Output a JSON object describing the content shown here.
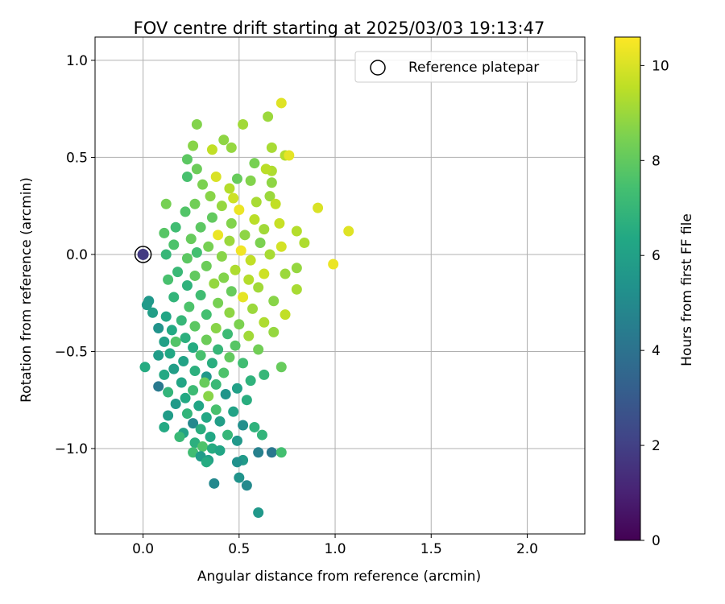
{
  "chart_data": {
    "type": "scatter",
    "title": "FOV centre drift starting at 2025/03/03 19:13:47",
    "xlabel": "Angular distance from reference (arcmin)",
    "ylabel": "Rotation from reference (arcmin)",
    "xlim": [
      -0.25,
      2.3
    ],
    "ylim": [
      -1.44,
      1.12
    ],
    "xticks": [
      0.0,
      0.5,
      1.0,
      1.5,
      2.0
    ],
    "xtick_labels": [
      "0.0",
      "0.5",
      "1.0",
      "1.5",
      "2.0"
    ],
    "yticks": [
      -1.0,
      -0.5,
      0.0,
      0.5,
      1.0
    ],
    "ytick_labels": [
      "−1.0",
      "−0.5",
      "0.0",
      "0.5",
      "1.0"
    ],
    "grid": true,
    "legend": {
      "position": "top-right",
      "entries": [
        "Reference platepar"
      ]
    },
    "colorbar": {
      "label": "Hours from first FF file",
      "range": [
        0,
        10.6
      ],
      "ticks": [
        0,
        2,
        4,
        6,
        8,
        10
      ],
      "tick_labels": [
        "0",
        "2",
        "4",
        "6",
        "8",
        "10"
      ],
      "colormap": "viridis"
    },
    "reference_point": {
      "x": 0.0,
      "y": 0.0,
      "hours": 1.8
    },
    "series": [
      {
        "points": [
          {
            "x": 0.72,
            "y": 0.78,
            "h": 10.1
          },
          {
            "x": 0.28,
            "y": 0.67,
            "h": 8.6
          },
          {
            "x": 0.52,
            "y": 0.67,
            "h": 9.1
          },
          {
            "x": 0.65,
            "y": 0.71,
            "h": 9.0
          },
          {
            "x": 0.26,
            "y": 0.56,
            "h": 8.7
          },
          {
            "x": 0.42,
            "y": 0.59,
            "h": 8.8
          },
          {
            "x": 0.67,
            "y": 0.55,
            "h": 9.2
          },
          {
            "x": 0.74,
            "y": 0.51,
            "h": 9.4
          },
          {
            "x": 0.76,
            "y": 0.51,
            "h": 10.2
          },
          {
            "x": 0.46,
            "y": 0.55,
            "h": 8.9
          },
          {
            "x": 0.36,
            "y": 0.54,
            "h": 9.6
          },
          {
            "x": 0.58,
            "y": 0.47,
            "h": 8.4
          },
          {
            "x": 0.67,
            "y": 0.43,
            "h": 9.3
          },
          {
            "x": 0.64,
            "y": 0.44,
            "h": 9.5
          },
          {
            "x": 0.23,
            "y": 0.49,
            "h": 7.9
          },
          {
            "x": 0.28,
            "y": 0.44,
            "h": 8.2
          },
          {
            "x": 0.38,
            "y": 0.4,
            "h": 10.0
          },
          {
            "x": 0.56,
            "y": 0.38,
            "h": 8.6
          },
          {
            "x": 0.23,
            "y": 0.4,
            "h": 7.5
          },
          {
            "x": 0.67,
            "y": 0.37,
            "h": 8.8
          },
          {
            "x": 0.31,
            "y": 0.36,
            "h": 8.5
          },
          {
            "x": 0.45,
            "y": 0.34,
            "h": 9.4
          },
          {
            "x": 0.49,
            "y": 0.39,
            "h": 8.1
          },
          {
            "x": 0.66,
            "y": 0.3,
            "h": 9.0
          },
          {
            "x": 0.35,
            "y": 0.3,
            "h": 8.7
          },
          {
            "x": 0.47,
            "y": 0.29,
            "h": 9.8
          },
          {
            "x": 0.59,
            "y": 0.27,
            "h": 9.2
          },
          {
            "x": 0.27,
            "y": 0.26,
            "h": 8.3
          },
          {
            "x": 0.12,
            "y": 0.26,
            "h": 8.4
          },
          {
            "x": 0.69,
            "y": 0.26,
            "h": 9.6
          },
          {
            "x": 0.41,
            "y": 0.25,
            "h": 8.9
          },
          {
            "x": 0.5,
            "y": 0.23,
            "h": 10.3
          },
          {
            "x": 0.91,
            "y": 0.24,
            "h": 10.0
          },
          {
            "x": 0.22,
            "y": 0.22,
            "h": 7.7
          },
          {
            "x": 0.36,
            "y": 0.19,
            "h": 8.0
          },
          {
            "x": 0.58,
            "y": 0.18,
            "h": 9.5
          },
          {
            "x": 0.71,
            "y": 0.16,
            "h": 9.7
          },
          {
            "x": 0.46,
            "y": 0.16,
            "h": 8.6
          },
          {
            "x": 0.3,
            "y": 0.14,
            "h": 7.9
          },
          {
            "x": 0.17,
            "y": 0.14,
            "h": 7.3
          },
          {
            "x": 0.63,
            "y": 0.13,
            "h": 9.1
          },
          {
            "x": 0.8,
            "y": 0.12,
            "h": 9.4
          },
          {
            "x": 1.07,
            "y": 0.12,
            "h": 10.1
          },
          {
            "x": 0.11,
            "y": 0.11,
            "h": 7.8
          },
          {
            "x": 0.39,
            "y": 0.1,
            "h": 10.3
          },
          {
            "x": 0.53,
            "y": 0.1,
            "h": 8.8
          },
          {
            "x": 0.84,
            "y": 0.06,
            "h": 9.3
          },
          {
            "x": 0.25,
            "y": 0.08,
            "h": 8.1
          },
          {
            "x": 0.45,
            "y": 0.07,
            "h": 9.0
          },
          {
            "x": 0.61,
            "y": 0.06,
            "h": 8.5
          },
          {
            "x": 0.72,
            "y": 0.04,
            "h": 9.9
          },
          {
            "x": 0.16,
            "y": 0.05,
            "h": 7.6
          },
          {
            "x": 0.34,
            "y": 0.04,
            "h": 8.4
          },
          {
            "x": 0.51,
            "y": 0.02,
            "h": 10.4
          },
          {
            "x": 0.28,
            "y": 0.01,
            "h": 7.4
          },
          {
            "x": 0.66,
            "y": 0.0,
            "h": 9.2
          },
          {
            "x": 0.12,
            "y": 0.0,
            "h": 7.0
          },
          {
            "x": 0.41,
            "y": -0.01,
            "h": 8.7
          },
          {
            "x": 0.23,
            "y": -0.02,
            "h": 7.9
          },
          {
            "x": 0.56,
            "y": -0.03,
            "h": 9.6
          },
          {
            "x": 0.99,
            "y": -0.05,
            "h": 10.3
          },
          {
            "x": 0.8,
            "y": -0.07,
            "h": 8.9
          },
          {
            "x": 0.33,
            "y": -0.06,
            "h": 8.2
          },
          {
            "x": 0.48,
            "y": -0.08,
            "h": 9.3
          },
          {
            "x": 0.18,
            "y": -0.09,
            "h": 7.1
          },
          {
            "x": 0.63,
            "y": -0.1,
            "h": 9.8
          },
          {
            "x": 0.27,
            "y": -0.11,
            "h": 8.0
          },
          {
            "x": 0.42,
            "y": -0.12,
            "h": 8.6
          },
          {
            "x": 0.74,
            "y": -0.1,
            "h": 9.0
          },
          {
            "x": 0.55,
            "y": -0.13,
            "h": 9.4
          },
          {
            "x": 0.13,
            "y": -0.13,
            "h": 7.5
          },
          {
            "x": 0.37,
            "y": -0.15,
            "h": 8.9
          },
          {
            "x": 0.23,
            "y": -0.16,
            "h": 6.8
          },
          {
            "x": 0.6,
            "y": -0.17,
            "h": 9.1
          },
          {
            "x": 0.8,
            "y": -0.18,
            "h": 9.2
          },
          {
            "x": 0.46,
            "y": -0.19,
            "h": 8.1
          },
          {
            "x": 0.3,
            "y": -0.21,
            "h": 7.3
          },
          {
            "x": 0.16,
            "y": -0.22,
            "h": 6.9
          },
          {
            "x": 0.52,
            "y": -0.22,
            "h": 10.2
          },
          {
            "x": 0.68,
            "y": -0.24,
            "h": 8.7
          },
          {
            "x": 0.39,
            "y": -0.25,
            "h": 8.4
          },
          {
            "x": 0.03,
            "y": -0.24,
            "h": 5.6
          },
          {
            "x": 0.02,
            "y": -0.26,
            "h": 5.7
          },
          {
            "x": 0.24,
            "y": -0.27,
            "h": 7.6
          },
          {
            "x": 0.57,
            "y": -0.28,
            "h": 9.0
          },
          {
            "x": 0.45,
            "y": -0.3,
            "h": 8.8
          },
          {
            "x": 0.74,
            "y": -0.31,
            "h": 9.6
          },
          {
            "x": 0.33,
            "y": -0.31,
            "h": 7.4
          },
          {
            "x": 0.12,
            "y": -0.32,
            "h": 6.2
          },
          {
            "x": 0.2,
            "y": -0.34,
            "h": 7.0
          },
          {
            "x": 0.05,
            "y": -0.3,
            "h": 5.9
          },
          {
            "x": 0.63,
            "y": -0.35,
            "h": 9.3
          },
          {
            "x": 0.5,
            "y": -0.36,
            "h": 8.5
          },
          {
            "x": 0.27,
            "y": -0.37,
            "h": 7.9
          },
          {
            "x": 0.38,
            "y": -0.38,
            "h": 8.7
          },
          {
            "x": 0.15,
            "y": -0.39,
            "h": 6.4
          },
          {
            "x": 0.08,
            "y": -0.38,
            "h": 5.4
          },
          {
            "x": 0.68,
            "y": -0.4,
            "h": 8.9
          },
          {
            "x": 0.44,
            "y": -0.41,
            "h": 7.2
          },
          {
            "x": 0.55,
            "y": -0.42,
            "h": 9.1
          },
          {
            "x": 0.22,
            "y": -0.43,
            "h": 6.7
          },
          {
            "x": 0.33,
            "y": -0.44,
            "h": 8.2
          },
          {
            "x": 0.11,
            "y": -0.45,
            "h": 6.0
          },
          {
            "x": 0.17,
            "y": -0.45,
            "h": 7.7
          },
          {
            "x": 0.48,
            "y": -0.47,
            "h": 7.8
          },
          {
            "x": 0.26,
            "y": -0.48,
            "h": 6.5
          },
          {
            "x": 0.39,
            "y": -0.49,
            "h": 7.0
          },
          {
            "x": 0.6,
            "y": -0.49,
            "h": 8.3
          },
          {
            "x": 0.14,
            "y": -0.51,
            "h": 6.3
          },
          {
            "x": 0.3,
            "y": -0.52,
            "h": 7.5
          },
          {
            "x": 0.08,
            "y": -0.52,
            "h": 5.8
          },
          {
            "x": 0.45,
            "y": -0.53,
            "h": 8.0
          },
          {
            "x": 0.21,
            "y": -0.55,
            "h": 6.1
          },
          {
            "x": 0.36,
            "y": -0.56,
            "h": 6.6
          },
          {
            "x": 0.52,
            "y": -0.56,
            "h": 7.3
          },
          {
            "x": 0.01,
            "y": -0.58,
            "h": 6.5
          },
          {
            "x": 0.72,
            "y": -0.58,
            "h": 8.1
          },
          {
            "x": 0.16,
            "y": -0.59,
            "h": 5.9
          },
          {
            "x": 0.27,
            "y": -0.6,
            "h": 6.7
          },
          {
            "x": 0.42,
            "y": -0.61,
            "h": 7.6
          },
          {
            "x": 0.11,
            "y": -0.62,
            "h": 6.4
          },
          {
            "x": 0.33,
            "y": -0.63,
            "h": 5.6
          },
          {
            "x": 0.63,
            "y": -0.62,
            "h": 7.0
          },
          {
            "x": 0.56,
            "y": -0.65,
            "h": 6.8
          },
          {
            "x": 0.2,
            "y": -0.66,
            "h": 6.2
          },
          {
            "x": 0.38,
            "y": -0.67,
            "h": 7.1
          },
          {
            "x": 0.32,
            "y": -0.66,
            "h": 8.1
          },
          {
            "x": 0.08,
            "y": -0.68,
            "h": 4.3
          },
          {
            "x": 0.49,
            "y": -0.69,
            "h": 6.0
          },
          {
            "x": 0.26,
            "y": -0.7,
            "h": 7.2
          },
          {
            "x": 0.13,
            "y": -0.71,
            "h": 6.9
          },
          {
            "x": 0.43,
            "y": -0.72,
            "h": 5.5
          },
          {
            "x": 0.34,
            "y": -0.73,
            "h": 8.7
          },
          {
            "x": 0.22,
            "y": -0.74,
            "h": 6.4
          },
          {
            "x": 0.54,
            "y": -0.75,
            "h": 6.6
          },
          {
            "x": 0.17,
            "y": -0.77,
            "h": 5.7
          },
          {
            "x": 0.29,
            "y": -0.78,
            "h": 6.2
          },
          {
            "x": 0.38,
            "y": -0.8,
            "h": 7.5
          },
          {
            "x": 0.47,
            "y": -0.81,
            "h": 6.1
          },
          {
            "x": 0.23,
            "y": -0.82,
            "h": 6.9
          },
          {
            "x": 0.13,
            "y": -0.83,
            "h": 5.8
          },
          {
            "x": 0.33,
            "y": -0.84,
            "h": 6.3
          },
          {
            "x": 0.4,
            "y": -0.86,
            "h": 5.9
          },
          {
            "x": 0.26,
            "y": -0.87,
            "h": 4.9
          },
          {
            "x": 0.52,
            "y": -0.88,
            "h": 5.2
          },
          {
            "x": 0.58,
            "y": -0.89,
            "h": 6.8
          },
          {
            "x": 0.11,
            "y": -0.89,
            "h": 6.4
          },
          {
            "x": 0.3,
            "y": -0.9,
            "h": 6.6
          },
          {
            "x": 0.21,
            "y": -0.92,
            "h": 6.1
          },
          {
            "x": 0.44,
            "y": -0.93,
            "h": 7.0
          },
          {
            "x": 0.62,
            "y": -0.93,
            "h": 6.9
          },
          {
            "x": 0.35,
            "y": -0.94,
            "h": 6.3
          },
          {
            "x": 0.19,
            "y": -0.94,
            "h": 7.1
          },
          {
            "x": 0.49,
            "y": -0.96,
            "h": 5.6
          },
          {
            "x": 0.27,
            "y": -0.97,
            "h": 6.7
          },
          {
            "x": 0.31,
            "y": -0.99,
            "h": 7.6
          },
          {
            "x": 0.36,
            "y": -1.0,
            "h": 6.5
          },
          {
            "x": 0.4,
            "y": -1.01,
            "h": 6.2
          },
          {
            "x": 0.26,
            "y": -1.02,
            "h": 7.3
          },
          {
            "x": 0.6,
            "y": -1.02,
            "h": 4.6
          },
          {
            "x": 0.67,
            "y": -1.02,
            "h": 4.2
          },
          {
            "x": 0.72,
            "y": -1.02,
            "h": 7.4
          },
          {
            "x": 0.3,
            "y": -1.04,
            "h": 5.8
          },
          {
            "x": 0.34,
            "y": -1.06,
            "h": 6.0
          },
          {
            "x": 0.52,
            "y": -1.06,
            "h": 5.7
          },
          {
            "x": 0.49,
            "y": -1.07,
            "h": 5.3
          },
          {
            "x": 0.33,
            "y": -1.07,
            "h": 6.5
          },
          {
            "x": 0.5,
            "y": -1.15,
            "h": 5.4
          },
          {
            "x": 0.37,
            "y": -1.18,
            "h": 4.9
          },
          {
            "x": 0.54,
            "y": -1.19,
            "h": 5.0
          },
          {
            "x": 0.6,
            "y": -1.33,
            "h": 5.6
          }
        ]
      }
    ]
  }
}
